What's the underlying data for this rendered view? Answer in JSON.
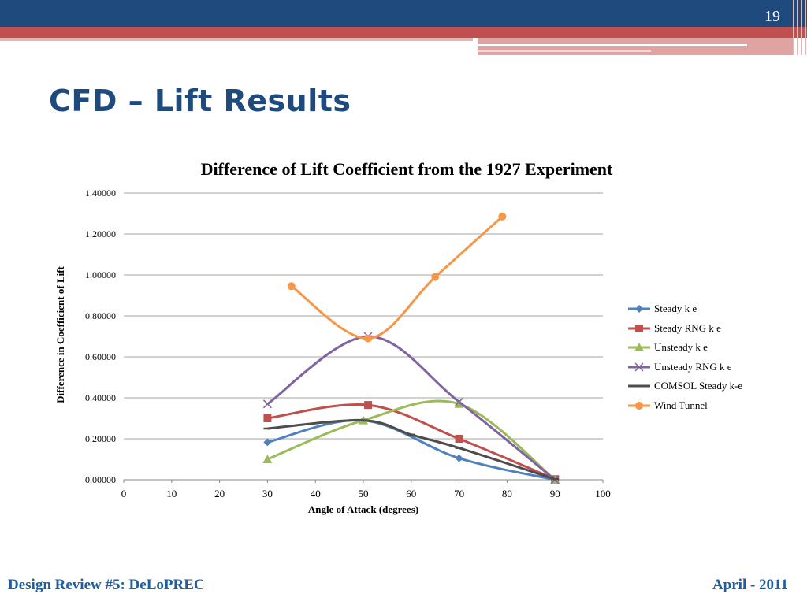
{
  "slide": {
    "number": "19",
    "title": "CFD – Lift Results",
    "footer_left": "Design Review #5: DeLoPREC",
    "footer_right": "April - 2011"
  },
  "colors": {
    "header_blue": "#1f4a7d",
    "header_red": "#c0504d",
    "footer_text": "#1f5fa0"
  },
  "chart_data": {
    "type": "line",
    "title": "Difference of Lift Coefficient from the 1927 Experiment",
    "xlabel": "Angle of Attack (degrees)",
    "ylabel": "Difference in Coefficient of Lift",
    "xlim": [
      0,
      100
    ],
    "ylim": [
      0,
      1.4
    ],
    "x_ticks": [
      "0",
      "10",
      "20",
      "30",
      "40",
      "50",
      "60",
      "70",
      "80",
      "90",
      "100"
    ],
    "y_ticks": [
      "0.00000",
      "0.20000",
      "0.40000",
      "0.60000",
      "0.80000",
      "1.00000",
      "1.20000",
      "1.40000"
    ],
    "grid": "horizontal",
    "legend_position": "right",
    "smooth": true,
    "series": [
      {
        "name": "Steady k e",
        "color": "#4f81bd",
        "marker": "diamond",
        "x": [
          30,
          50,
          70,
          90
        ],
        "y": [
          0.183,
          0.29,
          0.105,
          0.0
        ]
      },
      {
        "name": "Steady RNG k e",
        "color": "#c0504d",
        "marker": "square",
        "x": [
          30,
          51,
          70,
          90
        ],
        "y": [
          0.3,
          0.365,
          0.2,
          0.003
        ]
      },
      {
        "name": "Unsteady k e",
        "color": "#9bbb59",
        "marker": "triangle",
        "x": [
          30,
          50,
          70,
          90
        ],
        "y": [
          0.1,
          0.29,
          0.37,
          0.0
        ]
      },
      {
        "name": "Unsteady RNG k e",
        "color": "#8064a2",
        "marker": "x",
        "x": [
          30,
          51,
          70,
          90
        ],
        "y": [
          0.37,
          0.7,
          0.38,
          0.0
        ]
      },
      {
        "name": "COMSOL Steady k-e",
        "color": "#4d4d4d",
        "marker": "dash",
        "x": [
          30,
          50,
          60,
          70,
          90
        ],
        "y": [
          0.25,
          0.29,
          0.22,
          0.155,
          0.003
        ]
      },
      {
        "name": "Wind Tunnel",
        "color": "#f79646",
        "marker": "circle",
        "x": [
          35,
          51,
          65,
          79
        ],
        "y": [
          0.945,
          0.69,
          0.99,
          1.285
        ]
      }
    ]
  }
}
